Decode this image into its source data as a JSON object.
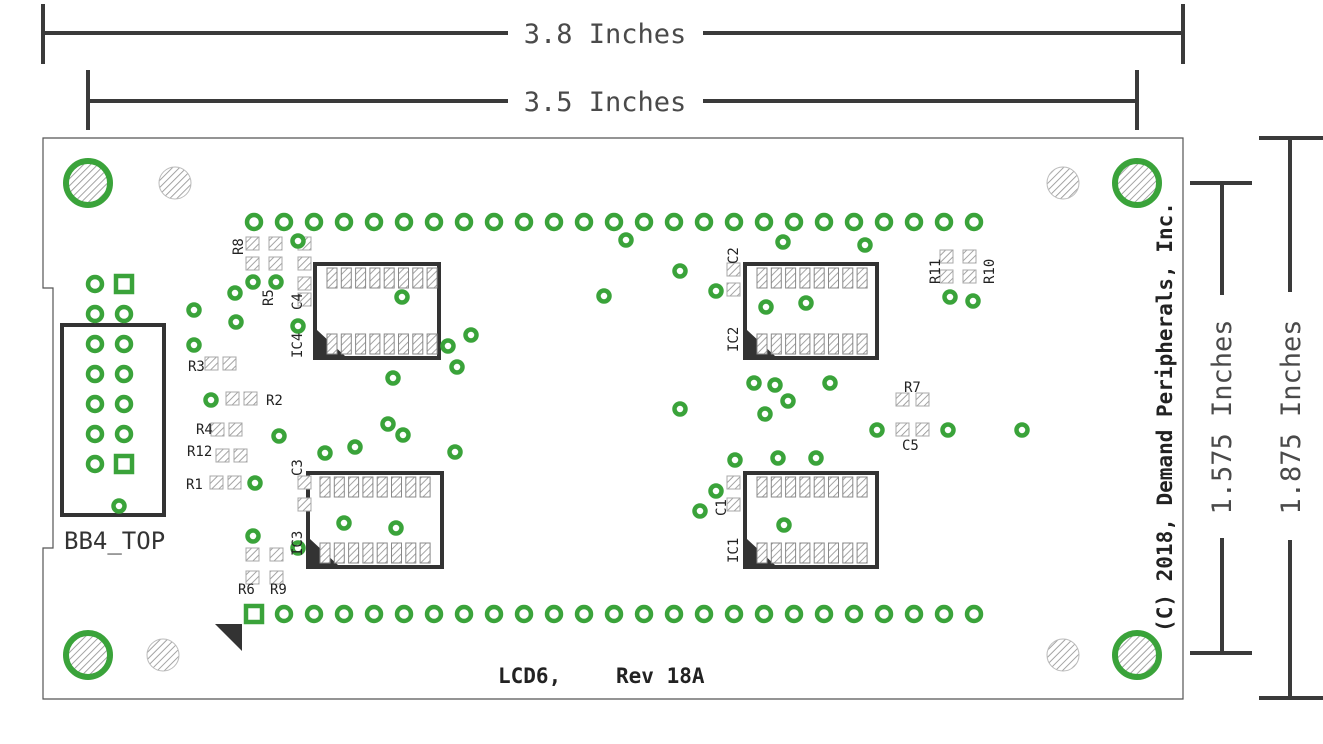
{
  "dimensions": {
    "top_width": "3.8 Inches",
    "inner_width": "3.5 Inches",
    "inner_height": "1.575 Inches",
    "outer_height": "1.875 Inches"
  },
  "board": {
    "connector_label": "BB4_TOP",
    "name": "LCD6,",
    "revision": "Rev 18A",
    "copyright": "(C) 2018, Demand Peripherals, Inc."
  },
  "components": {
    "ics": [
      "IC1",
      "IC2",
      "IC3",
      "IC4"
    ],
    "capacitors": [
      "C1",
      "C2",
      "C3",
      "C4",
      "C5"
    ],
    "resistors": [
      "R1",
      "R2",
      "R3",
      "R4",
      "R5",
      "R6",
      "R7",
      "R8",
      "R9",
      "R10",
      "R11",
      "R12"
    ]
  },
  "colors": {
    "pad_green": "#3aa33a",
    "outline": "#333333",
    "smd_pad": "#a8a8a8"
  }
}
